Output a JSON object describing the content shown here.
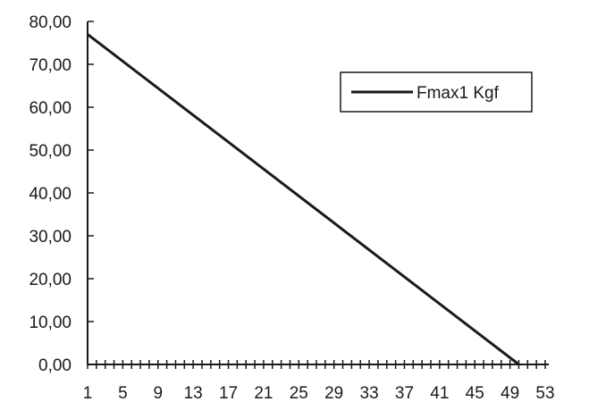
{
  "chart_data": {
    "type": "line",
    "title": "",
    "xlabel": "",
    "ylabel": "",
    "x_tick_labels": [
      "1",
      "5",
      "9",
      "13",
      "17",
      "21",
      "25",
      "29",
      "33",
      "37",
      "41",
      "45",
      "49",
      "53"
    ],
    "y_tick_labels": [
      "0,00",
      "10,00",
      "20,00",
      "30,00",
      "40,00",
      "50,00",
      "60,00",
      "70,00",
      "80,00"
    ],
    "ylim": [
      0,
      80
    ],
    "xlim": [
      1,
      53
    ],
    "legend_position": "top-right",
    "grid": false,
    "series": [
      {
        "name": "Fmax1 Kgf",
        "color": "#1a1a1a",
        "x": [
          1,
          50
        ],
        "y": [
          77,
          0
        ]
      }
    ]
  }
}
